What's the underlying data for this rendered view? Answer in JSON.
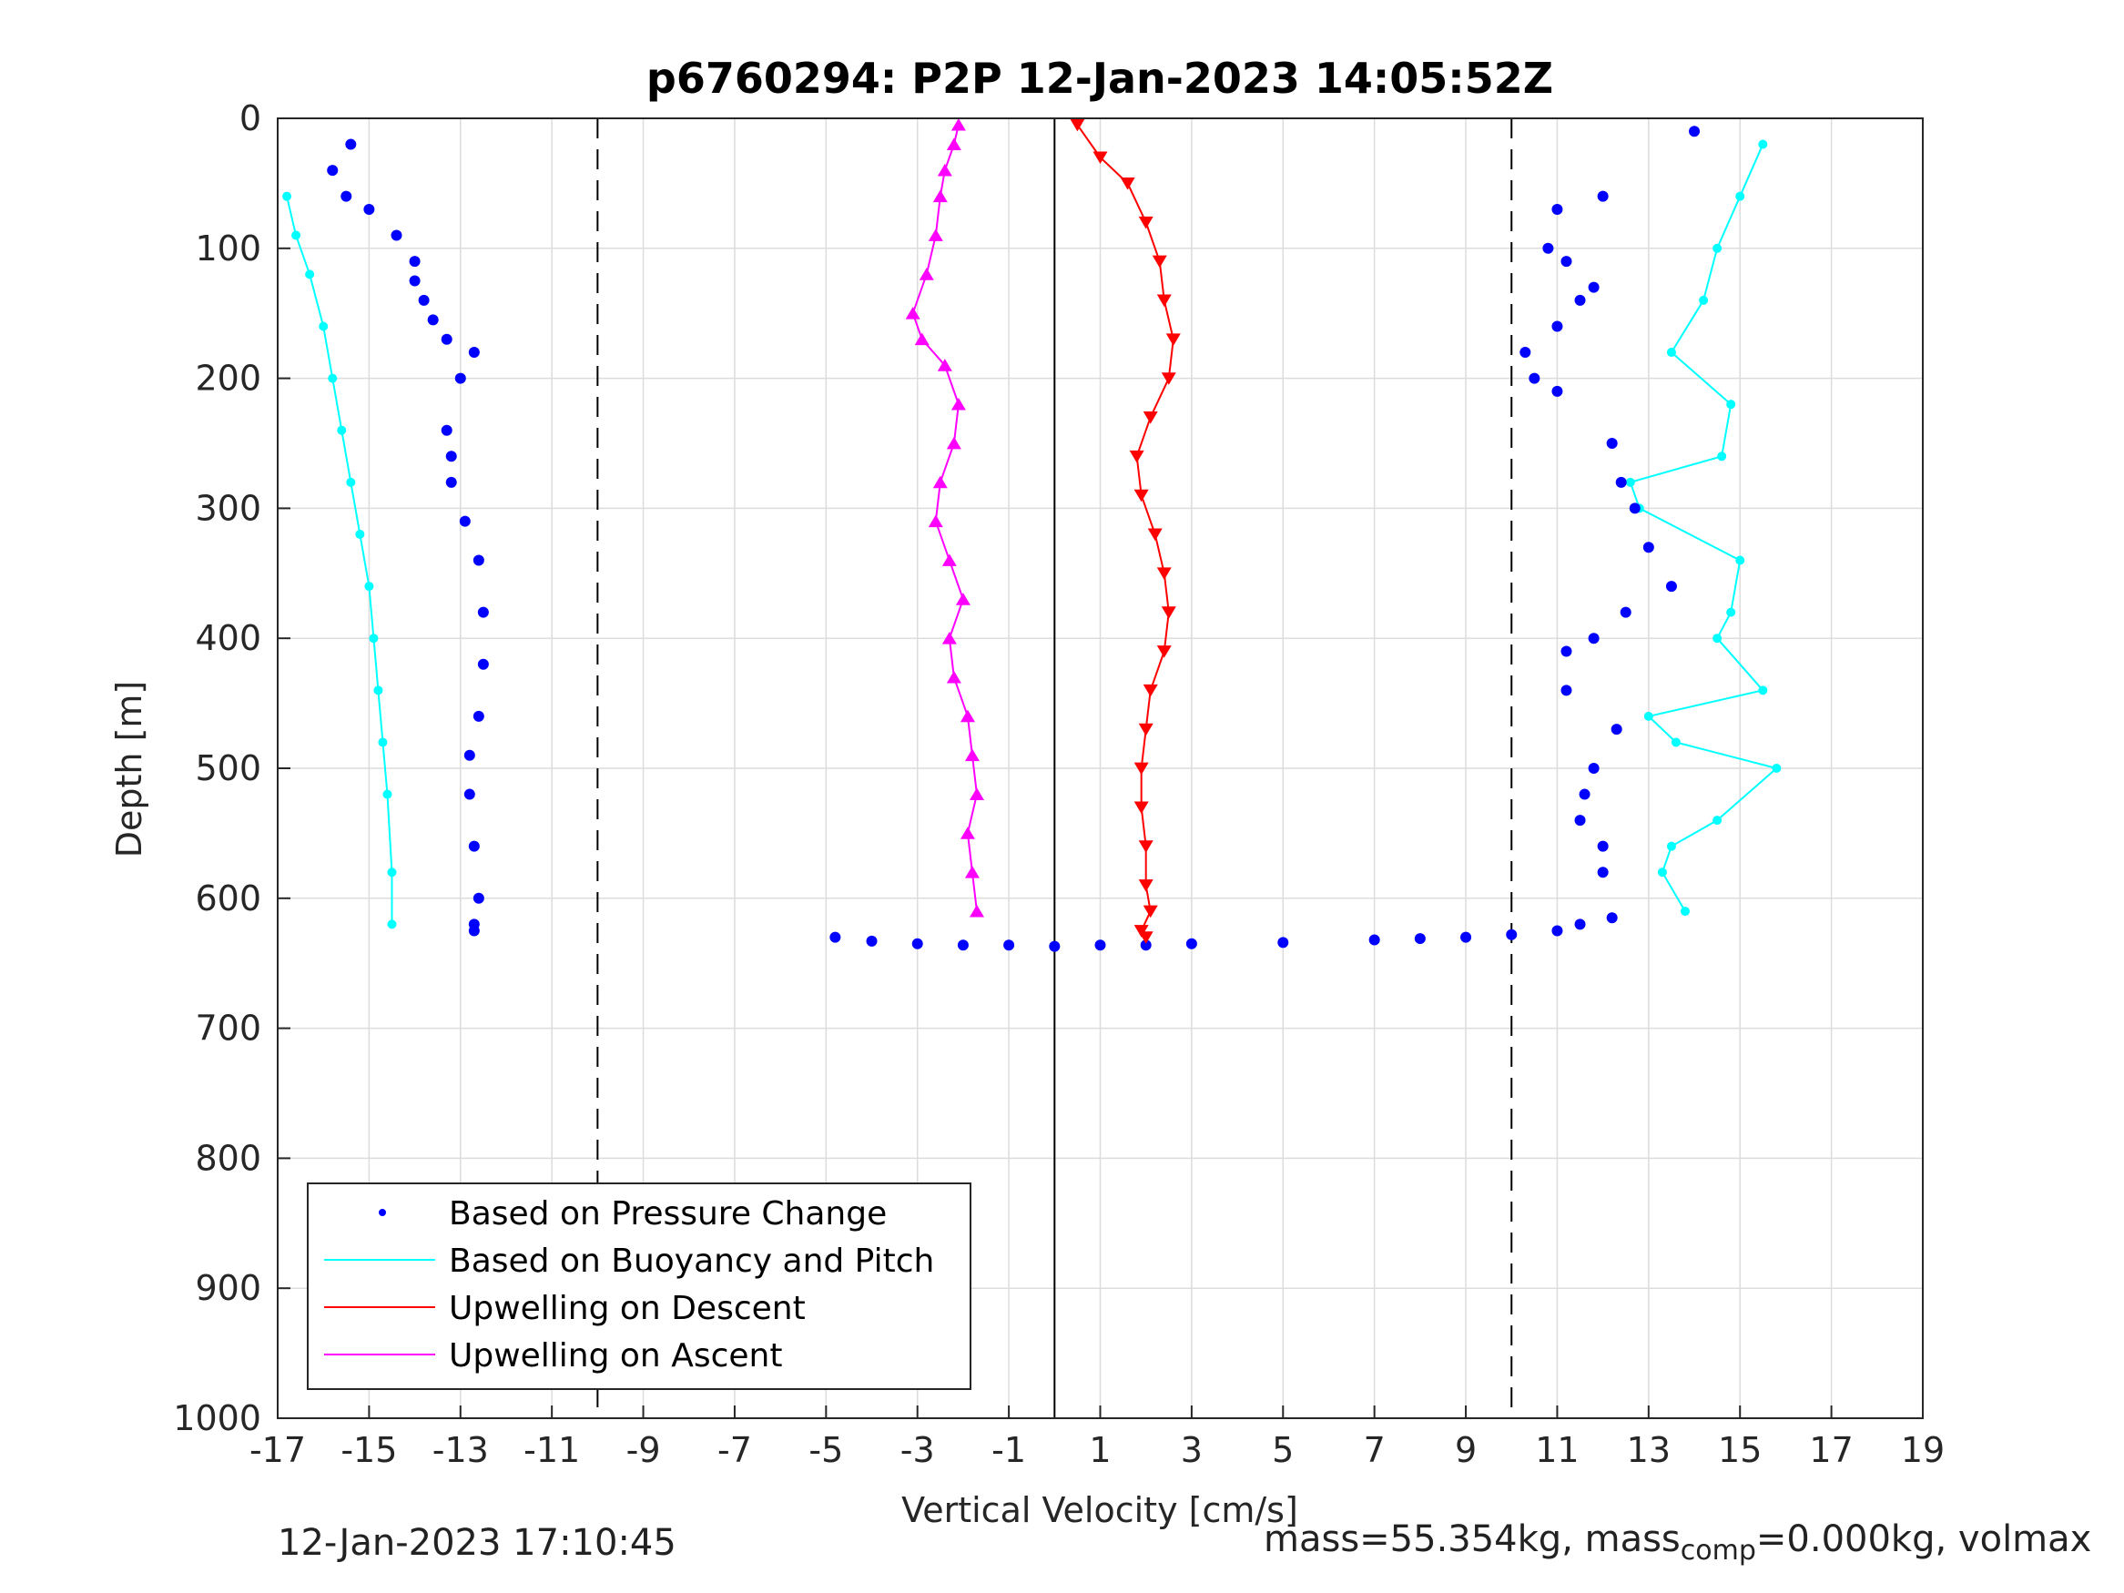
{
  "chart_data": {
    "type": "scatter",
    "title": "p6760294: P2P 12-Jan-2023 14:05:52Z",
    "xlabel": "Vertical Velocity [cm/s]",
    "ylabel": "Depth [m]",
    "xlim": [
      -17,
      19
    ],
    "ylim": [
      1000,
      0
    ],
    "y_reversed": true,
    "grid": true,
    "x_ticks": [
      "-17",
      "-15",
      "-13",
      "-11",
      "-9",
      "-7",
      "-5",
      "-3",
      "-1",
      "1",
      "3",
      "5",
      "7",
      "9",
      "11",
      "13",
      "15",
      "17",
      "19"
    ],
    "y_ticks": [
      "0",
      "100",
      "200",
      "300",
      "400",
      "500",
      "600",
      "700",
      "800",
      "900",
      "1000"
    ],
    "reference_lines": [
      {
        "x": 0,
        "style": "solid"
      },
      {
        "x": -10,
        "style": "dashed"
      },
      {
        "x": 10,
        "style": "dashed"
      }
    ],
    "legend_position": "bottom-left",
    "colors": {
      "pressure": "#0000ff",
      "buoyancy": "#00ffff",
      "descent": "#ff0000",
      "ascent": "#ff00ff"
    },
    "series": [
      {
        "name": "Based on Pressure Change",
        "marker": "dot",
        "color": "#0000ff",
        "profiles": [
          {
            "phase": "descent",
            "x": [
              -15.4,
              -15.8,
              -15.5,
              -15.0,
              -14.4,
              -14.0,
              -14.0,
              -13.8,
              -13.6,
              -13.3,
              -12.7,
              -13.0,
              -13.3,
              -13.2,
              -13.2,
              -12.9,
              -12.6,
              -12.5,
              -12.5,
              -12.6,
              -12.8,
              -12.8,
              -12.7,
              -12.6,
              -12.7,
              -12.7
            ],
            "y": [
              20,
              40,
              60,
              70,
              90,
              110,
              125,
              140,
              155,
              170,
              180,
              200,
              240,
              260,
              280,
              310,
              340,
              380,
              420,
              460,
              490,
              520,
              560,
              600,
              620,
              625
            ]
          },
          {
            "phase": "apogee",
            "x": [
              -4.8,
              -4,
              -3,
              -2,
              -1,
              0,
              1,
              2,
              3,
              5,
              7,
              8,
              9,
              10,
              11,
              11.5
            ],
            "y": [
              630,
              633,
              635,
              636,
              636,
              637,
              636,
              636,
              635,
              634,
              632,
              631,
              630,
              628,
              625,
              620
            ]
          },
          {
            "phase": "ascent",
            "x": [
              12.2,
              12.0,
              12.0,
              11.5,
              11.6,
              11.8,
              12.3,
              11.2,
              11.2,
              11.8,
              12.5,
              13.5,
              13.0,
              12.7,
              12.4,
              12.2,
              11.0,
              10.5,
              10.3,
              11.0,
              11.5,
              11.8,
              11.2,
              10.8,
              11.0,
              12.0,
              14.0
            ],
            "y": [
              615,
              580,
              560,
              540,
              520,
              500,
              470,
              440,
              410,
              400,
              380,
              360,
              330,
              300,
              280,
              250,
              210,
              200,
              180,
              160,
              140,
              130,
              110,
              100,
              70,
              60,
              10
            ]
          }
        ]
      },
      {
        "name": "Based on Buoyancy and Pitch",
        "marker": "line-dot",
        "color": "#00ffff",
        "profiles": [
          {
            "phase": "descent",
            "x": [
              -16.8,
              -16.6,
              -16.3,
              -16.0,
              -15.8,
              -15.6,
              -15.4,
              -15.2,
              -15.0,
              -14.9,
              -14.8,
              -14.7,
              -14.6,
              -14.5,
              -14.5
            ],
            "y": [
              60,
              90,
              120,
              160,
              200,
              240,
              280,
              320,
              360,
              400,
              440,
              480,
              520,
              580,
              620
            ]
          },
          {
            "phase": "ascent",
            "x": [
              13.8,
              13.3,
              13.5,
              14.5,
              15.8,
              13.6,
              13.0,
              15.5,
              14.5,
              14.8,
              15.0,
              12.8,
              12.6,
              14.6,
              14.8,
              13.5,
              14.2,
              14.5,
              15.0,
              15.5
            ],
            "y": [
              610,
              580,
              560,
              540,
              500,
              480,
              460,
              440,
              400,
              380,
              340,
              300,
              280,
              260,
              220,
              180,
              140,
              100,
              60,
              20
            ]
          }
        ]
      },
      {
        "name": "Upwelling on Descent",
        "marker": "triangle-down",
        "color": "#ff0000",
        "x": [
          0.5,
          1.0,
          1.6,
          2.0,
          2.3,
          2.4,
          2.6,
          2.5,
          2.1,
          1.8,
          1.9,
          2.2,
          2.4,
          2.5,
          2.4,
          2.1,
          2.0,
          1.9,
          1.9,
          2.0,
          2.0,
          2.1,
          1.9,
          2.0
        ],
        "y": [
          5,
          30,
          50,
          80,
          110,
          140,
          170,
          200,
          230,
          260,
          290,
          320,
          350,
          380,
          410,
          440,
          470,
          500,
          530,
          560,
          590,
          610,
          625,
          630
        ]
      },
      {
        "name": "Upwelling on Ascent",
        "marker": "triangle-up",
        "color": "#ff00ff",
        "x": [
          -1.7,
          -1.8,
          -1.9,
          -1.7,
          -1.8,
          -1.9,
          -2.2,
          -2.3,
          -2.0,
          -2.3,
          -2.6,
          -2.5,
          -2.2,
          -2.1,
          -2.4,
          -2.9,
          -3.1,
          -2.8,
          -2.6,
          -2.5,
          -2.4,
          -2.2,
          -2.1
        ],
        "y": [
          610,
          580,
          550,
          520,
          490,
          460,
          430,
          400,
          370,
          340,
          310,
          280,
          250,
          220,
          190,
          170,
          150,
          120,
          90,
          60,
          40,
          20,
          5
        ]
      }
    ]
  },
  "footer": {
    "datetime": "12-Jan-2023 17:10:45",
    "mass_prefix": "mass=55.354kg, mass",
    "mass_sub": "comp",
    "mass_suffix": "=0.000kg, volmax"
  }
}
